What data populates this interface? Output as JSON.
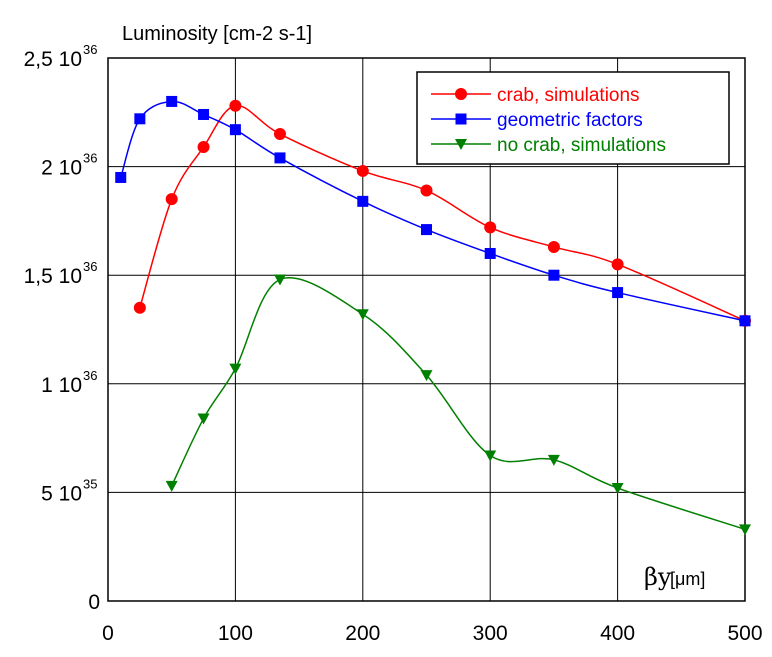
{
  "chart_data": {
    "type": "line",
    "title": "Luminosity [cm-2 s-1]",
    "xlabel": {
      "symbol": "βy",
      "unit": "[μm]"
    },
    "xlim": [
      0,
      500
    ],
    "ylim": [
      0,
      2.5
    ],
    "xticks": [
      0,
      100,
      200,
      300,
      400,
      500
    ],
    "yticks": [
      {
        "value": 0,
        "mantissa": "0",
        "exponent": ""
      },
      {
        "value": 0.5,
        "mantissa": "5 10",
        "exponent": "35"
      },
      {
        "value": 1.0,
        "mantissa": "1 10",
        "exponent": "36"
      },
      {
        "value": 1.5,
        "mantissa": "1,5 10",
        "exponent": "36"
      },
      {
        "value": 2.0,
        "mantissa": "2 10",
        "exponent": "36"
      },
      {
        "value": 2.5,
        "mantissa": "2,5 10",
        "exponent": "36"
      }
    ],
    "y_unit_note": "y values in units of 10^36 cm-2 s-1",
    "grid": true,
    "legend_position": "top-right",
    "series": [
      {
        "name": "crab, simulations",
        "color": "#ff0000",
        "marker": "circle",
        "x": [
          25,
          50,
          75,
          100,
          135,
          200,
          250,
          300,
          350,
          400,
          500
        ],
        "y": [
          1.35,
          1.85,
          2.09,
          2.28,
          2.15,
          1.98,
          1.89,
          1.72,
          1.63,
          1.55,
          1.29
        ]
      },
      {
        "name": "geometric factors",
        "color": "#0000ff",
        "marker": "square",
        "x": [
          10,
          25,
          50,
          75,
          100,
          135,
          200,
          250,
          300,
          350,
          400,
          500
        ],
        "y": [
          1.95,
          2.22,
          2.3,
          2.24,
          2.17,
          2.04,
          1.84,
          1.71,
          1.6,
          1.5,
          1.42,
          1.29
        ]
      },
      {
        "name": "no crab, simulations",
        "color": "#008000",
        "marker": "triangle-down",
        "x": [
          50,
          75,
          100,
          135,
          200,
          250,
          300,
          350,
          400,
          500
        ],
        "y": [
          0.53,
          0.84,
          1.07,
          1.48,
          1.32,
          1.04,
          0.67,
          0.65,
          0.52,
          0.33
        ]
      }
    ]
  }
}
